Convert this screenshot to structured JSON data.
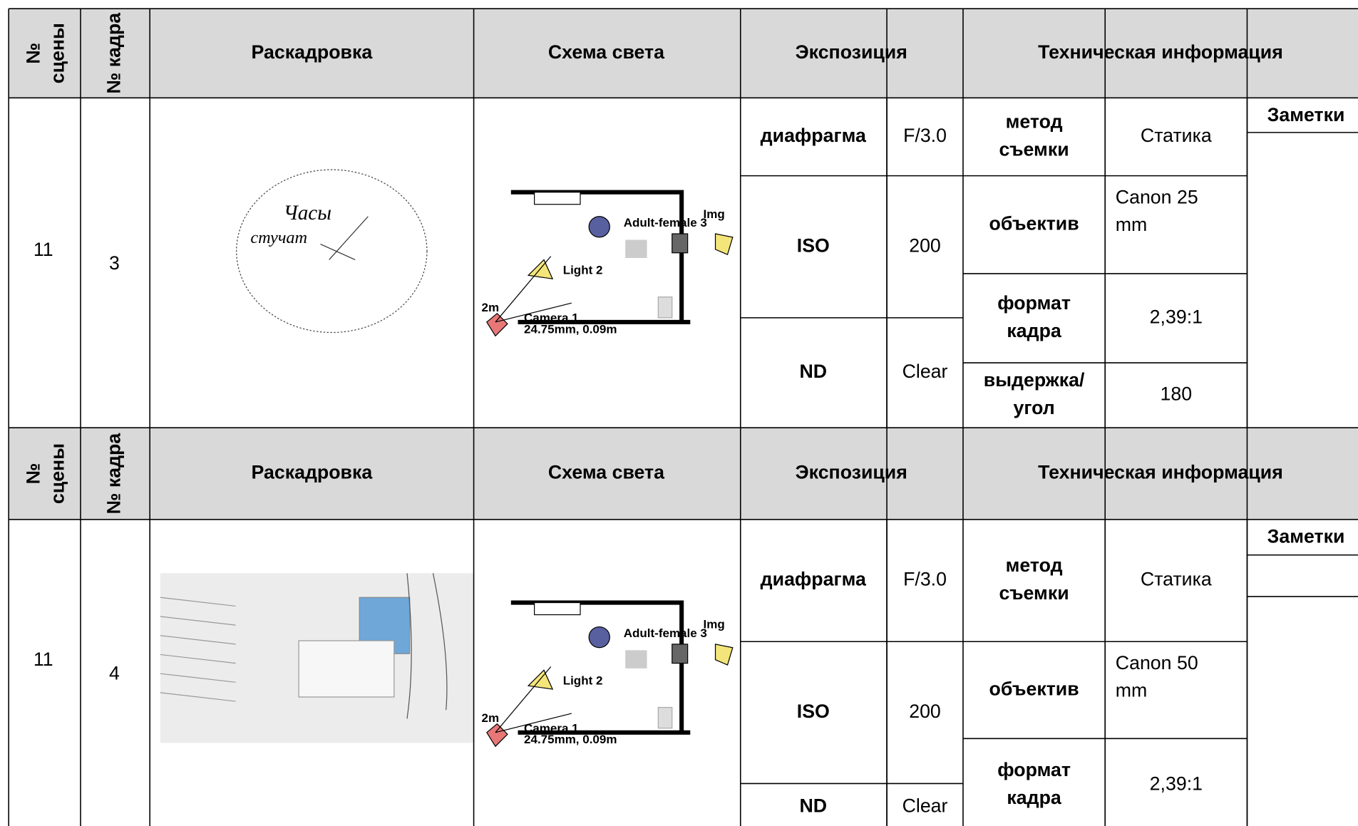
{
  "blocks": [
    {
      "header": {
        "scene": [
          "№",
          "сцены"
        ],
        "frame": "№ кадра",
        "storyboard": "Раскадровка",
        "lighting": "Схема света",
        "exposure": "Экспозиция",
        "tech": "Техническая информация"
      },
      "row": {
        "scene": "11",
        "frame": "3",
        "sketch_text": [
          "Часы",
          "стучат"
        ],
        "light_labels": [
          "Adult-female 3",
          "Img",
          "Light 2",
          "2m",
          "Camera 1",
          "24.75mm, 0.09m"
        ],
        "exposure": [
          {
            "label": "диафрагма",
            "value": "F/3.0"
          },
          {
            "label": "ISO",
            "value": "200"
          },
          {
            "label": "ND",
            "value": "Clear"
          }
        ],
        "tech": [
          {
            "label": [
              "метод",
              "съемки"
            ],
            "value": [
              "Статика"
            ]
          },
          {
            "label": [
              "объектив"
            ],
            "value": [
              "Canon 25",
              "mm"
            ]
          },
          {
            "label": [
              "формат",
              "кадра"
            ],
            "value": [
              "2,39:1"
            ]
          },
          {
            "label": [
              "выдержка/",
              "угол"
            ],
            "value": [
              "180"
            ]
          }
        ],
        "notes": "Заметки"
      }
    },
    {
      "header": {
        "scene": [
          "№",
          "сцены"
        ],
        "frame": "№ кадра",
        "storyboard": "Раскадровка",
        "lighting": "Схема света",
        "exposure": "Экспозиция",
        "tech": "Техническая информация"
      },
      "row": {
        "scene": "11",
        "frame": "4",
        "light_labels": [
          "Adult-female 3",
          "Img",
          "Light 2",
          "2m",
          "Camera 1",
          "24.75mm, 0.09m"
        ],
        "exposure": [
          {
            "label": "диафрагма",
            "value": "F/3.0"
          },
          {
            "label": "ISO",
            "value": "200"
          },
          {
            "label": "ND",
            "value": "Clear"
          }
        ],
        "tech": [
          {
            "label": [
              "метод",
              "съемки"
            ],
            "value": [
              "Статика"
            ]
          },
          {
            "label": [
              "объектив"
            ],
            "value": [
              "Canon 50",
              "mm"
            ]
          },
          {
            "label": [
              "формат",
              "кадра"
            ],
            "value": [
              "2,39:1"
            ]
          }
        ],
        "notes": "Заметки"
      }
    }
  ]
}
